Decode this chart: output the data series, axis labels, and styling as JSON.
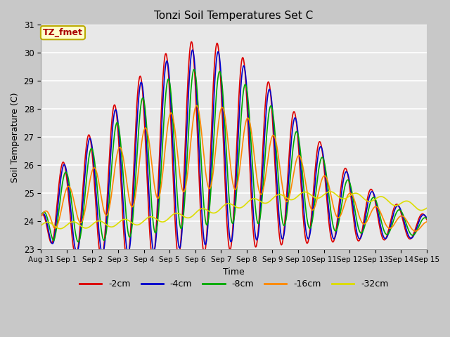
{
  "title": "Tonzi Soil Temperatures Set C",
  "xlabel": "Time",
  "ylabel": "Soil Temperature (C)",
  "ylim": [
    23.0,
    31.0
  ],
  "yticks": [
    23.0,
    24.0,
    25.0,
    26.0,
    27.0,
    28.0,
    29.0,
    30.0,
    31.0
  ],
  "annotation": "TZ_fmet",
  "annotation_color": "#aa0000",
  "annotation_bg": "#ffffcc",
  "annotation_border": "#bbaa00",
  "fig_facecolor": "#c8c8c8",
  "ax_facecolor": "#e8e8e8",
  "grid_color": "#ffffff",
  "series": [
    {
      "label": "-2cm",
      "color": "#dd0000",
      "depth": 2
    },
    {
      "label": "-4cm",
      "color": "#0000cc",
      "depth": 4
    },
    {
      "label": "-8cm",
      "color": "#00aa00",
      "depth": 8
    },
    {
      "label": "-16cm",
      "color": "#ff8800",
      "depth": 16
    },
    {
      "label": "-32cm",
      "color": "#dddd00",
      "depth": 32
    }
  ],
  "xtick_labels": [
    "Aug 31",
    "Sep 1",
    "Sep 2",
    "Sep 3",
    "Sep 4",
    "Sep 5",
    "Sep 6",
    "Sep 7",
    "Sep 8",
    "Sep 9",
    "Sep 10",
    "Sep 11",
    "Sep 12",
    "Sep 13",
    "Sep 14",
    "Sep 15"
  ],
  "n_days": 15,
  "points_per_day": 96
}
